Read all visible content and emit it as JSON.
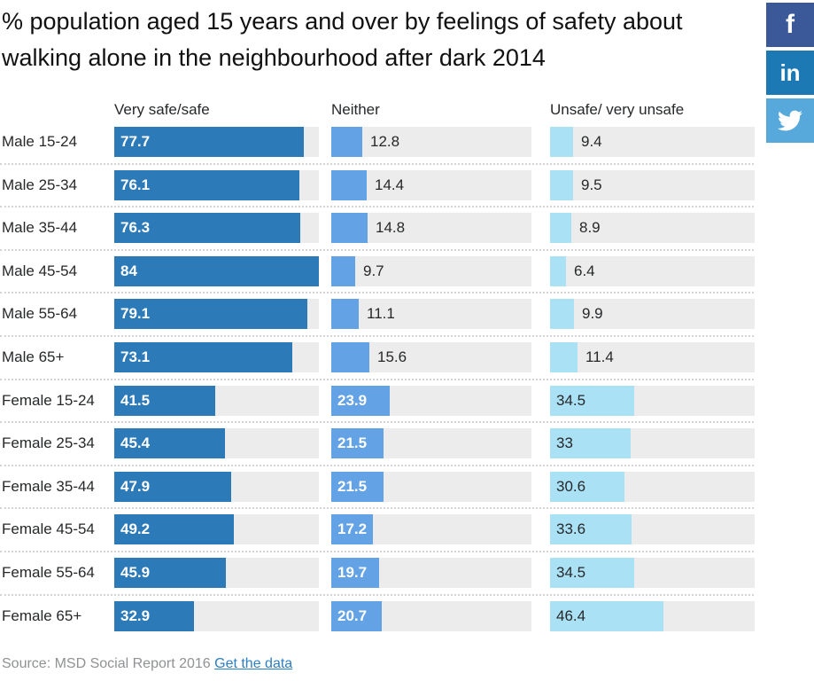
{
  "chart_data": {
    "type": "bar",
    "title": "% population aged 15 years and over by feelings of safety about walking alone in the neighbourhood after dark 2014",
    "categories": [
      "Male 15-24",
      "Male 25-34",
      "Male 35-44",
      "Male 45-54",
      "Male 55-64",
      "Male 65+",
      "Female 15-24",
      "Female 25-34",
      "Female 35-44",
      "Female 45-54",
      "Female 55-64",
      "Female 65+"
    ],
    "series": [
      {
        "name": "Very safe/safe",
        "color": "#2d7ab9",
        "values": [
          77.7,
          76.1,
          76.3,
          84,
          79.1,
          73.1,
          41.5,
          45.4,
          47.9,
          49.2,
          45.9,
          32.9
        ]
      },
      {
        "name": "Neither",
        "color": "#62a2e5",
        "values": [
          12.8,
          14.4,
          14.8,
          9.7,
          11.1,
          15.6,
          23.9,
          21.5,
          21.5,
          17.2,
          19.7,
          20.7
        ]
      },
      {
        "name": "Unsafe/ very unsafe",
        "color": "#abe1f5",
        "values": [
          9.4,
          9.5,
          8.9,
          6.4,
          9.9,
          11.4,
          34.5,
          33,
          30.6,
          33.6,
          34.5,
          46.4
        ]
      }
    ],
    "xlim": [
      0,
      84
    ],
    "value_labels": "shown",
    "track_color": "#ececec",
    "grid": "off",
    "legend_position": "column headers above bars"
  },
  "social": {
    "facebook_glyph": "f",
    "linkedin_glyph": "in",
    "colors": {
      "facebook": "#3b5998",
      "linkedin": "#1d79b4",
      "twitter": "#57a9dc"
    }
  },
  "footer": {
    "source": "Source: MSD Social Report 2016",
    "link_label": "Get the data"
  }
}
